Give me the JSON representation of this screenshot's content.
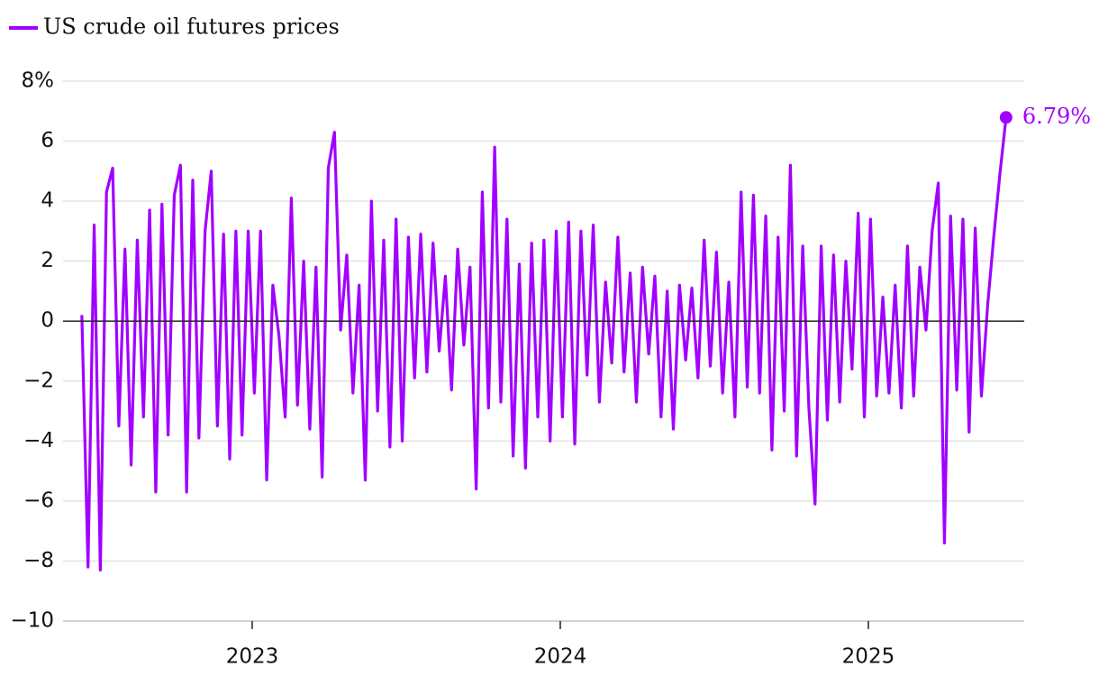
{
  "chart_data": {
    "type": "line",
    "series": [
      {
        "name": "US crude oil futures prices",
        "color": "#a100ff",
        "values": [
          0.2,
          -8.2,
          3.2,
          -8.3,
          4.3,
          5.1,
          -3.5,
          2.4,
          -4.8,
          2.7,
          -3.2,
          3.7,
          -5.7,
          3.9,
          -3.8,
          4.2,
          5.2,
          -5.7,
          4.7,
          -3.9,
          3.0,
          5.0,
          -3.5,
          2.9,
          -4.6,
          3.0,
          -3.8,
          3.0,
          -2.4,
          3.0,
          -5.3,
          1.2,
          -0.5,
          -3.2,
          4.1,
          -2.8,
          2.0,
          -3.6,
          1.8,
          -5.2,
          5.1,
          6.3,
          -0.3,
          2.2,
          -2.4,
          1.2,
          -5.3,
          4.0,
          -3.0,
          2.7,
          -4.2,
          3.4,
          -4.0,
          2.8,
          -1.9,
          2.9,
          -1.7,
          2.6,
          -1.0,
          1.5,
          -2.3,
          2.4,
          -0.8,
          1.8,
          -5.6,
          4.3,
          -2.9,
          5.8,
          -2.7,
          3.4,
          -4.5,
          1.9,
          -4.9,
          2.6,
          -3.2,
          2.7,
          -4.0,
          3.0,
          -3.2,
          3.3,
          -4.1,
          3.0,
          -1.8,
          3.2,
          -2.7,
          1.3,
          -1.4,
          2.8,
          -1.7,
          1.6,
          -2.7,
          1.8,
          -1.1,
          1.5,
          -3.2,
          1.0,
          -3.6,
          1.2,
          -1.3,
          1.1,
          -1.9,
          2.7,
          -1.5,
          2.3,
          -2.4,
          1.3,
          -3.2,
          4.3,
          -2.2,
          4.2,
          -2.4,
          3.5,
          -4.3,
          2.8,
          -3.0,
          5.2,
          -4.5,
          2.5,
          -2.9,
          -6.1,
          2.5,
          -3.3,
          2.2,
          -2.7,
          2.0,
          -1.6,
          3.6,
          -3.2,
          3.4,
          -2.5,
          0.8,
          -2.4,
          1.2,
          -2.9,
          2.5,
          -2.5,
          1.8,
          -0.3,
          3.0,
          4.6,
          -7.4,
          3.5,
          -2.3,
          3.4,
          -3.7,
          3.1,
          -2.5,
          0.5,
          2.8,
          4.9,
          6.79
        ]
      }
    ],
    "x": [
      2022.447,
      2022.467,
      2022.487,
      2022.507,
      2022.527,
      2022.547,
      2022.567,
      2022.587,
      2022.607,
      2022.627,
      2022.647,
      2022.667,
      2022.687,
      2022.707,
      2022.727,
      2022.747,
      2022.767,
      2022.787,
      2022.807,
      2022.827,
      2022.847,
      2022.867,
      2022.887,
      2022.907,
      2022.927,
      2022.947,
      2022.967,
      2022.987,
      2023.007,
      2023.027,
      2023.047,
      2023.067,
      2023.087,
      2023.107,
      2023.127,
      2023.147,
      2023.167,
      2023.187,
      2023.207,
      2023.227,
      2023.247,
      2023.267,
      2023.287,
      2023.307,
      2023.327,
      2023.347,
      2023.367,
      2023.387,
      2023.407,
      2023.427,
      2023.447,
      2023.467,
      2023.487,
      2023.507,
      2023.527,
      2023.547,
      2023.567,
      2023.587,
      2023.607,
      2023.627,
      2023.647,
      2023.667,
      2023.687,
      2023.707,
      2023.727,
      2023.747,
      2023.767,
      2023.787,
      2023.807,
      2023.827,
      2023.847,
      2023.867,
      2023.887,
      2023.907,
      2023.927,
      2023.947,
      2023.967,
      2023.987,
      2024.007,
      2024.027,
      2024.047,
      2024.067,
      2024.087,
      2024.107,
      2024.127,
      2024.147,
      2024.167,
      2024.187,
      2024.207,
      2024.227,
      2024.247,
      2024.267,
      2024.287,
      2024.307,
      2024.327,
      2024.347,
      2024.367,
      2024.387,
      2024.407,
      2024.427,
      2024.447,
      2024.467,
      2024.487,
      2024.507,
      2024.527,
      2024.547,
      2024.567,
      2024.587,
      2024.607,
      2024.627,
      2024.647,
      2024.667,
      2024.687,
      2024.707,
      2024.727,
      2024.747,
      2024.767,
      2024.787,
      2024.807,
      2024.827,
      2024.847,
      2024.867,
      2024.887,
      2024.907,
      2024.927,
      2024.947,
      2024.967,
      2024.987,
      2025.007,
      2025.027,
      2025.047,
      2025.067,
      2025.087,
      2025.107,
      2025.127,
      2025.147,
      2025.167,
      2025.187,
      2025.207,
      2025.227,
      2025.247,
      2025.267,
      2025.287,
      2025.307,
      2025.327,
      2025.347,
      2025.367,
      2025.387,
      2025.407,
      2025.427,
      2025.447
    ],
    "xlim": [
      2022.386,
      2025.506
    ],
    "xticks": [
      2023,
      2024,
      2025
    ],
    "ylim": [
      -10,
      8
    ],
    "yticks": [
      {
        "value": -10,
        "label": "−10"
      },
      {
        "value": -8,
        "label": "−8"
      },
      {
        "value": -6,
        "label": "−6"
      },
      {
        "value": -4,
        "label": "−4"
      },
      {
        "value": -2,
        "label": "−2"
      },
      0,
      2,
      4,
      6,
      {
        "value": 8,
        "label": "8%"
      }
    ],
    "grid": true,
    "annotation": {
      "x": 2025.447,
      "y": 6.79,
      "label": "6.79%"
    }
  }
}
